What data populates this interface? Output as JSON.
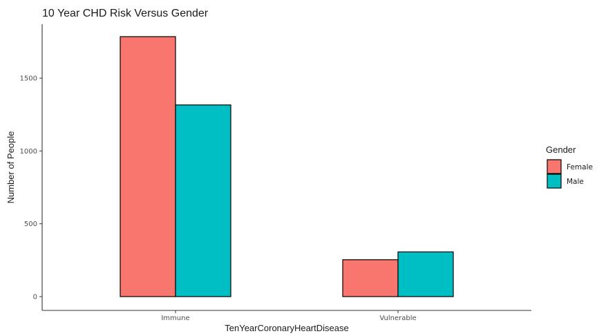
{
  "chart_data": {
    "type": "bar",
    "title": "10 Year CHD Risk Versus Gender",
    "xlabel": "TenYearCoronaryHeartDisease",
    "ylabel": "Number of People",
    "categories": [
      "Immune",
      "Vulnerable"
    ],
    "series": [
      {
        "name": "Female",
        "values": [
          1785,
          253
        ],
        "color": "#F8766D"
      },
      {
        "name": "Male",
        "values": [
          1316,
          307
        ],
        "color": "#00BFC4"
      }
    ],
    "ylim": [
      0,
      1785
    ],
    "yticks": [
      0,
      500,
      1000,
      1500
    ],
    "grid": false,
    "legend": {
      "title": "Gender",
      "position": "right"
    }
  }
}
